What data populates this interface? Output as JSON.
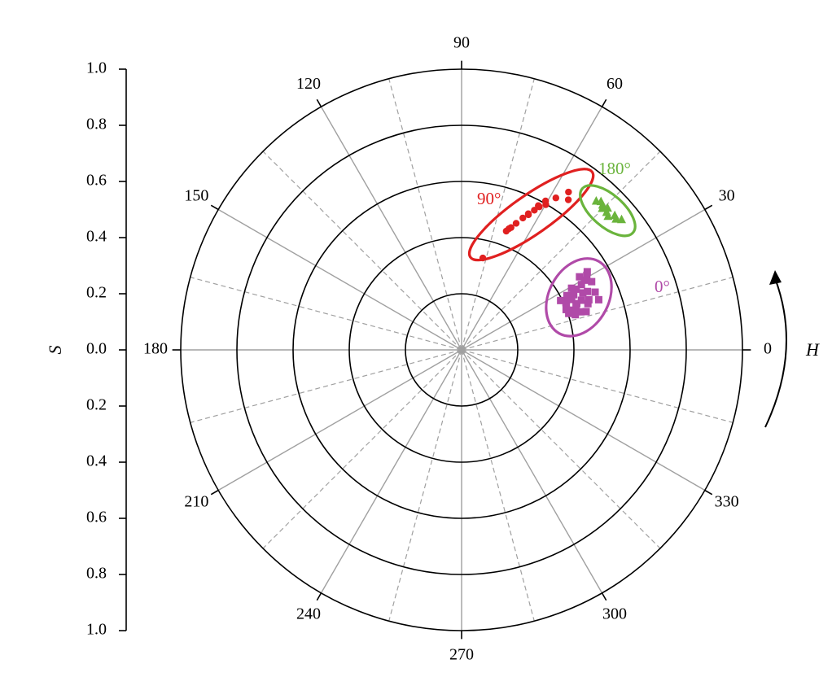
{
  "chart_data": {
    "type": "scatter",
    "coordinate_system": "polar",
    "radial_axis": {
      "label": "S",
      "range": [
        0,
        1.0
      ],
      "ticks": [
        "0.0",
        "0.2",
        "0.4",
        "0.6",
        "0.8",
        "1.0"
      ]
    },
    "angular_axis": {
      "label": "H",
      "unit": "degrees",
      "direction": "counterclockwise",
      "zero_at": "right",
      "labels": [
        "0",
        "30",
        "60",
        "90",
        "120",
        "150",
        "180",
        "210",
        "240",
        "270",
        "300",
        "330"
      ]
    },
    "grid": true,
    "series": [
      {
        "name": "0°",
        "marker": "square",
        "color": "#b04aa8",
        "points": [
          {
            "h": 31.9,
            "s": 0.527
          },
          {
            "h": 30.8,
            "s": 0.519
          },
          {
            "h": 29.5,
            "s": 0.504
          },
          {
            "h": 31.8,
            "s": 0.494
          },
          {
            "h": 27.7,
            "s": 0.523
          },
          {
            "h": 28.6,
            "s": 0.486
          },
          {
            "h": 27.9,
            "s": 0.462
          },
          {
            "h": 25.2,
            "s": 0.477
          },
          {
            "h": 29.3,
            "s": 0.449
          },
          {
            "h": 26.2,
            "s": 0.445
          },
          {
            "h": 27.3,
            "s": 0.422
          },
          {
            "h": 24.6,
            "s": 0.431
          },
          {
            "h": 21.5,
            "s": 0.487
          },
          {
            "h": 24.9,
            "s": 0.494
          },
          {
            "h": 22.5,
            "s": 0.462
          },
          {
            "h": 24.4,
            "s": 0.408
          },
          {
            "h": 26.5,
            "s": 0.394
          },
          {
            "h": 21.9,
            "s": 0.442
          },
          {
            "h": 20.8,
            "s": 0.436
          },
          {
            "h": 20.1,
            "s": 0.479
          },
          {
            "h": 22.6,
            "s": 0.404
          },
          {
            "h": 19.8,
            "s": 0.418
          },
          {
            "h": 21.1,
            "s": 0.399
          },
          {
            "h": 18.8,
            "s": 0.403
          },
          {
            "h": 18.5,
            "s": 0.43
          },
          {
            "h": 17.7,
            "s": 0.446
          },
          {
            "h": 17.2,
            "s": 0.424
          },
          {
            "h": 17.1,
            "s": 0.464
          },
          {
            "h": 23.4,
            "s": 0.518
          },
          {
            "h": 20.1,
            "s": 0.52
          }
        ]
      },
      {
        "name": "90°",
        "marker": "circle",
        "color": "#e02020",
        "points": [
          {
            "h": 77.0,
            "s": 0.336
          },
          {
            "h": 69.4,
            "s": 0.452
          },
          {
            "h": 68.7,
            "s": 0.463
          },
          {
            "h": 68.0,
            "s": 0.47
          },
          {
            "h": 66.7,
            "s": 0.491
          },
          {
            "h": 65.1,
            "s": 0.518
          },
          {
            "h": 63.9,
            "s": 0.54
          },
          {
            "h": 63.7,
            "s": 0.537
          },
          {
            "h": 62.5,
            "s": 0.561
          },
          {
            "h": 62.0,
            "s": 0.582
          },
          {
            "h": 61.5,
            "s": 0.58
          },
          {
            "h": 60.6,
            "s": 0.609
          },
          {
            "h": 59.9,
            "s": 0.598
          },
          {
            "h": 58.2,
            "s": 0.637
          },
          {
            "h": 55.9,
            "s": 0.679
          },
          {
            "h": 54.6,
            "s": 0.656
          }
        ]
      },
      {
        "name": "180°",
        "marker": "triangle",
        "color": "#6ab43c",
        "points": [
          {
            "h": 47.9,
            "s": 0.715
          },
          {
            "h": 46.8,
            "s": 0.725
          },
          {
            "h": 45.8,
            "s": 0.72
          },
          {
            "h": 45.2,
            "s": 0.711
          },
          {
            "h": 44.2,
            "s": 0.725
          },
          {
            "h": 43.5,
            "s": 0.712
          },
          {
            "h": 42.4,
            "s": 0.706
          },
          {
            "h": 41.3,
            "s": 0.726
          },
          {
            "h": 40.3,
            "s": 0.721
          },
          {
            "h": 39.2,
            "s": 0.735
          }
        ]
      }
    ],
    "group_labels": [
      "0°",
      "90°",
      "180°"
    ]
  },
  "colors": {
    "background": "#ffffff",
    "ring": "#000000",
    "major_spoke": "#a0a0a0",
    "minor_spoke": "#a0a0a0"
  }
}
